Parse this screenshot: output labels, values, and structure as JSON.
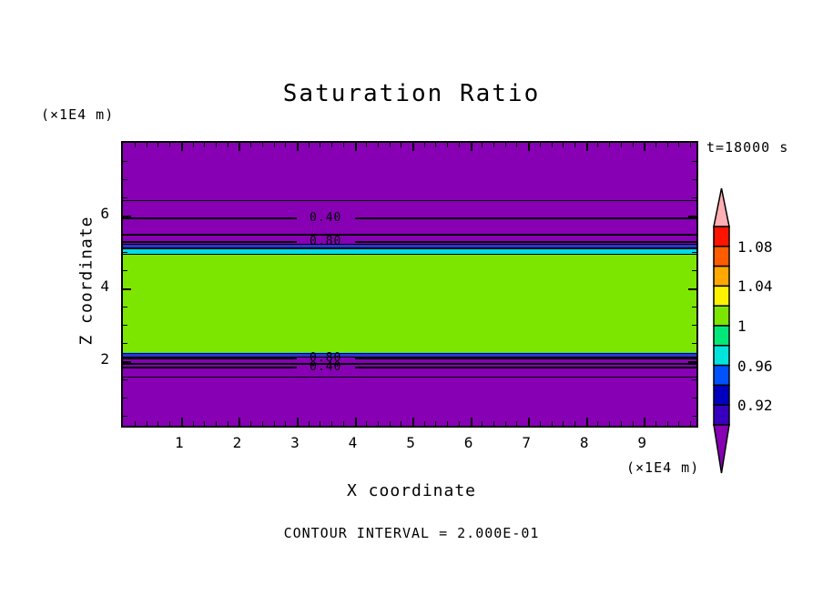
{
  "title": "Saturation Ratio",
  "time_label": "t=18000 s",
  "footer": "CONTOUR INTERVAL = 2.000E-01",
  "x_axis": {
    "label": "X coordinate",
    "unit": "(×1E4 m)",
    "tick_labels": [
      "1",
      "2",
      "3",
      "4",
      "5",
      "6",
      "7",
      "8",
      "9"
    ]
  },
  "y_axis": {
    "label": "Z coordinate",
    "unit": "(×1E4 m)",
    "tick_labels": [
      "6",
      "4",
      "2"
    ]
  },
  "colorbar": {
    "labels": [
      "1.08",
      "1.04",
      "1",
      "0.96",
      "0.92"
    ],
    "tip_top_color": "#FFB0B4",
    "tip_bottom_color": "#8700B4",
    "segment_colors": [
      "#FF1400",
      "#FF5C00",
      "#FFA800",
      "#FFF200",
      "#7DE600",
      "#00E878",
      "#00E4DC",
      "#0052FF",
      "#0000BE",
      "#3800BE"
    ]
  },
  "colors": {
    "purple": "#8700B4",
    "green": "#7DE600",
    "cyan": "#00DCE6",
    "blue": "#3232D2",
    "black": "#000000",
    "background": "#FFFFFF"
  },
  "chart_data": {
    "type": "heatmap",
    "subtype": "filled-contour-plot",
    "title": "Saturation Ratio",
    "xlabel": "X coordinate",
    "ylabel": "Z coordinate",
    "axis_unit": "(×1E4 m)",
    "time_annotation": "t=18000 s",
    "contour_interval_label": "CONTOUR INTERVAL = 2.000E-01",
    "contour_interval": 0.2,
    "x_range": [
      0,
      9.97
    ],
    "y_range": [
      0.125,
      8.0
    ],
    "x_major_ticks": [
      1,
      2,
      3,
      4,
      5,
      6,
      7,
      8,
      9
    ],
    "x_minor_step": 0.2,
    "y_major_ticks": [
      2,
      4,
      6
    ],
    "y_minor_step": 0.5,
    "grid": false,
    "legend_position": "right-colorbar",
    "bands": [
      {
        "name": "background",
        "from": 0.125,
        "to": 8.0,
        "color_key": "purple",
        "value_range": "< 0.90",
        "bordered": false
      },
      {
        "name": "green-core",
        "from": 2.25,
        "to": 4.925,
        "color_key": "green",
        "value_range": "1.00-1.02",
        "bordered": false
      },
      {
        "name": "cyan-strip-top",
        "from": 4.925,
        "to": 5.105,
        "color_key": "cyan",
        "value_range": "0.96-0.98",
        "bordered": true
      },
      {
        "name": "blue-strip-top",
        "from": 5.105,
        "to": 5.235,
        "color_key": "blue",
        "value_range": "0.92-0.96",
        "bordered": true
      },
      {
        "name": "cyan-strip-bottom",
        "from": 2.225,
        "to": 2.25,
        "color_key": "cyan",
        "value_range": "0.96-0.98",
        "bordered": false
      },
      {
        "name": "blue-strip-bottom",
        "from": 2.095,
        "to": 2.225,
        "color_key": "blue",
        "value_range": "0.92-0.96",
        "bordered": true
      }
    ],
    "contour_lines": [
      {
        "level": "0.20",
        "y": 6.425,
        "labeled": false,
        "w": 1
      },
      {
        "level": "0.40",
        "y": 5.925,
        "labeled": true,
        "w": 2
      },
      {
        "level": "0.60",
        "y": 5.475,
        "labeled": false,
        "w": 1.5
      },
      {
        "level": "0.80",
        "y": 5.275,
        "labeled": true,
        "w": 2
      },
      {
        "level": "0.80",
        "y": 2.075,
        "labeled": true,
        "w": 2
      },
      {
        "level": "0.60",
        "y": 1.925,
        "labeled": false,
        "w": 1.5
      },
      {
        "level": "0.40",
        "y": 1.825,
        "labeled": true,
        "w": 2
      },
      {
        "level": "0.20",
        "y": 1.575,
        "labeled": false,
        "w": 1
      }
    ],
    "contour_label_x_range": [
      3.0,
      4.0
    ],
    "color_scale": {
      "interval": 0.02,
      "levels_top_to_bottom": [
        {
          "min": 1.1,
          "color": "#FFB0B4",
          "note": "above-range arrow tip"
        },
        {
          "min": 1.08,
          "color": "#FF1400"
        },
        {
          "min": 1.06,
          "color": "#FF5C00"
        },
        {
          "min": 1.04,
          "color": "#FFA800"
        },
        {
          "min": 1.02,
          "color": "#FFF200"
        },
        {
          "min": 1.0,
          "color": "#7DE600"
        },
        {
          "min": 0.98,
          "color": "#00E878"
        },
        {
          "min": 0.96,
          "color": "#00E4DC"
        },
        {
          "min": 0.94,
          "color": "#0052FF"
        },
        {
          "min": 0.92,
          "color": "#0000BE"
        },
        {
          "min": 0.9,
          "color": "#3800BE"
        },
        {
          "min": null,
          "color": "#8700B4",
          "note": "below-range arrow tip"
        }
      ],
      "labeled_boundaries": [
        1.08,
        1.04,
        1.0,
        0.96,
        0.92
      ]
    }
  }
}
